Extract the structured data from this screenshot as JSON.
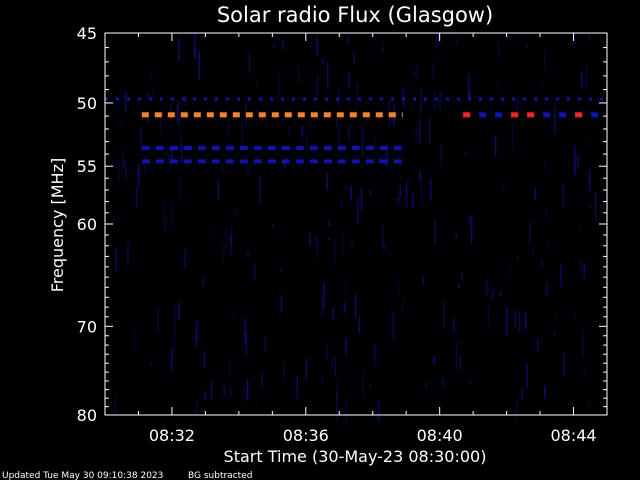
{
  "chart_data": {
    "type": "heatmap",
    "title": "Solar radio Flux (Glasgow)",
    "xlabel": "Start Time (30-May-23 08:30:00)",
    "ylabel": "Frequency [MHz]",
    "x_ticks": [
      "08:32",
      "08:36",
      "08:40",
      "08:44"
    ],
    "x_tick_minutes": [
      2,
      6,
      10,
      14
    ],
    "xlim_minutes": [
      0,
      15
    ],
    "y_ticks": [
      45,
      50,
      55,
      60,
      70,
      80
    ],
    "ylim": [
      45,
      80
    ],
    "y_scale": "log",
    "colormap": [
      "#000000",
      "#1010c0",
      "#ff8020",
      "#ff2020"
    ],
    "bands": [
      {
        "freq": 50.9,
        "t_start": 1.1,
        "t_end": 8.9,
        "level": "orange",
        "style": "dashed"
      },
      {
        "freq": 50.9,
        "t_start": 10.7,
        "t_end": 15.0,
        "level": "red",
        "style": "sparse"
      },
      {
        "freq": 49.7,
        "t_start": 0.0,
        "t_end": 15.0,
        "level": "blue",
        "style": "dotted"
      },
      {
        "freq": 53.5,
        "t_start": 1.1,
        "t_end": 8.9,
        "level": "blue",
        "style": "dashed"
      },
      {
        "freq": 54.6,
        "t_start": 1.1,
        "t_end": 8.9,
        "level": "blue",
        "style": "dashed"
      }
    ]
  },
  "footer": {
    "updated": "Updated Tue May 30 09:10:38 2023",
    "note": "BG subtracted"
  },
  "colors": {
    "background": "#000000",
    "axis": "#ffffff",
    "low": "#1010c0",
    "mid": "#ff8020",
    "high": "#ff2020"
  }
}
